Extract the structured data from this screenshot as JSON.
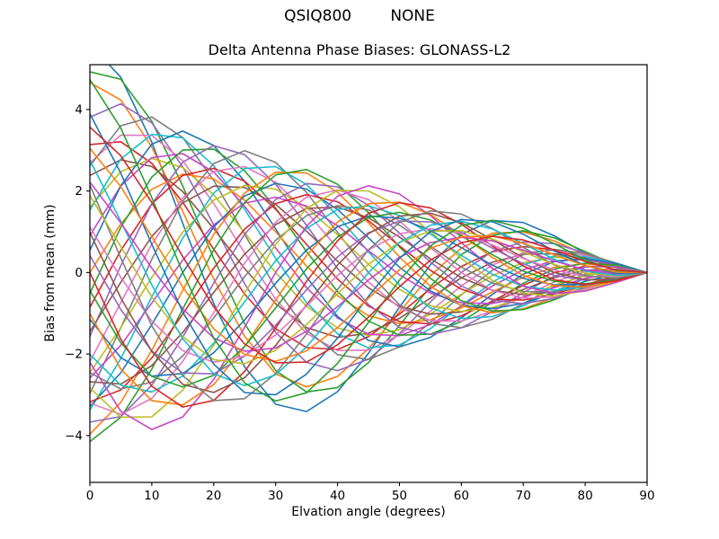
{
  "suptitle": "QSIQ800        NONE",
  "chart_data": {
    "type": "line",
    "title": "Delta Antenna Phase Biases: GLONASS-L2",
    "xlabel": "Elvation angle (degrees)",
    "ylabel": "Bias from mean (mm)",
    "xlim": [
      0,
      90
    ],
    "ylim": [
      -5.15,
      5.1
    ],
    "grid": false,
    "legend": "none",
    "xticks": [
      0,
      10,
      20,
      30,
      40,
      50,
      60,
      70,
      80,
      90
    ],
    "xtick_labels": [
      "0",
      "10",
      "20",
      "30",
      "40",
      "50",
      "60",
      "70",
      "80",
      "90"
    ],
    "yticks": [
      -4,
      -2,
      0,
      2,
      4
    ],
    "ytick_labels": [
      "−4",
      "−2",
      "0",
      "2",
      "4"
    ],
    "x": [
      0,
      5,
      10,
      15,
      20,
      25,
      30,
      35,
      40,
      45,
      50,
      55,
      60,
      65,
      70,
      75,
      80,
      85,
      90
    ],
    "model_note": "Each bias curve (one per satellite/antenna) is a damped oscillation converging to 0 mm at 90 deg elevation; curve k: y = amp*cos(phase)*b1 + amp*sin(phase)*b2, sampled at x.",
    "basis": {
      "b1": [
        1.0,
        0.856,
        0.571,
        0.216,
        -0.135,
        -0.414,
        -0.577,
        -0.609,
        -0.522,
        -0.354,
        -0.152,
        0.034,
        0.167,
        0.228,
        0.219,
        0.161,
        0.085,
        0.024,
        0.0
      ],
      "b2": [
        0.0,
        0.399,
        0.681,
        0.805,
        0.766,
        0.592,
        0.333,
        0.053,
        -0.19,
        -0.354,
        -0.418,
        -0.387,
        -0.289,
        -0.159,
        -0.039,
        0.043,
        0.071,
        0.05,
        0.0
      ]
    },
    "palette": [
      "#1f77b4",
      "#ff7f0e",
      "#2ca02c",
      "#d62728",
      "#9467bd",
      "#8c564b",
      "#e377c2",
      "#7f7f7f",
      "#bcbd22",
      "#17becf",
      "#c844c8"
    ],
    "series": [
      {
        "phase_deg": 0.0,
        "amp": 5.6
      },
      {
        "phase_deg": 7.5,
        "amp": 4.7
      },
      {
        "phase_deg": 15.0,
        "amp": 5.1
      },
      {
        "phase_deg": 22.5,
        "amp": 3.4
      },
      {
        "phase_deg": 30.0,
        "amp": 4.4
      },
      {
        "phase_deg": 37.5,
        "amp": 3.0
      },
      {
        "phase_deg": 45.0,
        "amp": 3.8
      },
      {
        "phase_deg": 52.5,
        "amp": 4.3
      },
      {
        "phase_deg": 60.0,
        "amp": 3.2
      },
      {
        "phase_deg": 67.5,
        "amp": 4.0
      },
      {
        "phase_deg": 75.0,
        "amp": 3.5
      },
      {
        "phase_deg": 82.5,
        "amp": 4.2
      },
      {
        "phase_deg": 90.0,
        "amp": 3.0
      },
      {
        "phase_deg": 97.5,
        "amp": 3.9
      },
      {
        "phase_deg": 105.0,
        "amp": 3.3
      },
      {
        "phase_deg": 112.5,
        "amp": 4.1
      },
      {
        "phase_deg": 120.0,
        "amp": 2.9
      },
      {
        "phase_deg": 127.5,
        "amp": 3.6
      },
      {
        "phase_deg": 135.0,
        "amp": 4.2
      },
      {
        "phase_deg": 142.5,
        "amp": 3.1
      },
      {
        "phase_deg": 150.0,
        "amp": 3.9
      },
      {
        "phase_deg": 157.5,
        "amp": 2.8
      },
      {
        "phase_deg": 165.0,
        "amp": 3.4
      },
      {
        "phase_deg": 172.5,
        "amp": 4.0
      },
      {
        "phase_deg": 180.0,
        "amp": 4.15
      },
      {
        "phase_deg": 187.5,
        "amp": 3.2
      },
      {
        "phase_deg": 195.0,
        "amp": 3.8
      },
      {
        "phase_deg": 202.5,
        "amp": 2.9
      },
      {
        "phase_deg": 210.0,
        "amp": 3.7
      },
      {
        "phase_deg": 217.5,
        "amp": 3.1
      },
      {
        "phase_deg": 225.0,
        "amp": 4.0
      },
      {
        "phase_deg": 232.5,
        "amp": 3.3
      },
      {
        "phase_deg": 240.0,
        "amp": 4.4
      },
      {
        "phase_deg": 247.5,
        "amp": 3.0
      },
      {
        "phase_deg": 255.0,
        "amp": 3.9
      },
      {
        "phase_deg": 262.5,
        "amp": 3.4
      },
      {
        "phase_deg": 270.0,
        "amp": 4.1
      },
      {
        "phase_deg": 277.5,
        "amp": 3.2
      },
      {
        "phase_deg": 285.0,
        "amp": 3.8
      },
      {
        "phase_deg": 292.5,
        "amp": 2.9
      },
      {
        "phase_deg": 300.0,
        "amp": 4.3
      },
      {
        "phase_deg": 307.5,
        "amp": 3.1
      },
      {
        "phase_deg": 315.0,
        "amp": 3.9
      },
      {
        "phase_deg": 322.5,
        "amp": 2.8
      },
      {
        "phase_deg": 330.0,
        "amp": 4.5
      },
      {
        "phase_deg": 337.5,
        "amp": 3.3
      },
      {
        "phase_deg": 345.0,
        "amp": 4.9
      },
      {
        "phase_deg": 352.5,
        "amp": 3.6
      }
    ]
  }
}
